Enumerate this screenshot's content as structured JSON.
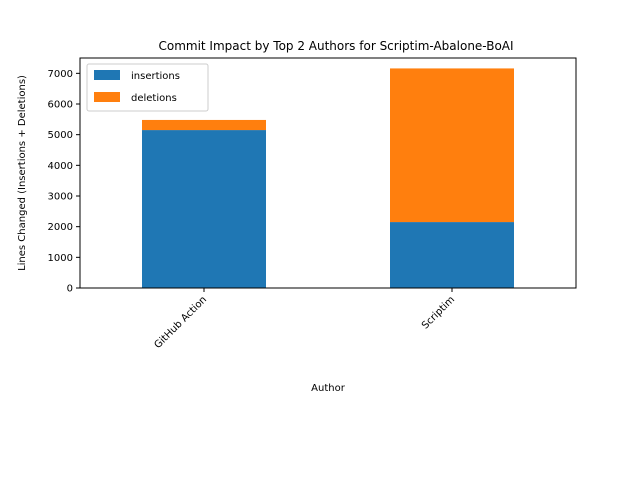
{
  "chart_data": {
    "type": "bar",
    "stacked": true,
    "title": "Commit Impact by Top 2 Authors for Scriptim-Abalone-BoAI",
    "xlabel": "Author",
    "ylabel": "Lines Changed (Insertions + Deletions)",
    "categories": [
      "GitHub Action",
      "Scriptim"
    ],
    "series": [
      {
        "name": "insertions",
        "values": [
          5150,
          2150
        ],
        "color": "#1f77b4"
      },
      {
        "name": "deletions",
        "values": [
          330,
          5010
        ],
        "color": "#ff7f0e"
      }
    ],
    "ylim": [
      0,
      7500
    ],
    "yticks": [
      0,
      1000,
      2000,
      3000,
      4000,
      5000,
      6000,
      7000
    ],
    "grid": false,
    "legend_position": "top-left",
    "x_tick_rotation": 45
  }
}
